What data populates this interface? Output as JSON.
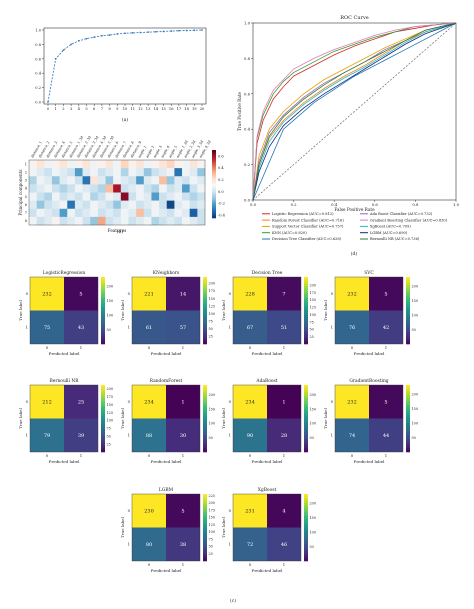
{
  "colors": {
    "viridis": [
      "#440154",
      "#482878",
      "#3e4989",
      "#31688e",
      "#26828e",
      "#1f9e89",
      "#35b779",
      "#6ece58",
      "#b5de2b",
      "#fde725"
    ],
    "rdbu": [
      "#053061",
      "#2166ac",
      "#4393c3",
      "#92c5de",
      "#d1e5f0",
      "#f7f7f7",
      "#fddbc7",
      "#f4a582",
      "#d6604d",
      "#b2182b",
      "#67001f"
    ],
    "scree_line": "#3b7dbf"
  },
  "panels": {
    "a": {
      "caption": "(a)"
    },
    "b": {
      "caption": "(b)"
    },
    "c": {
      "caption": "(c)"
    },
    "d": {
      "caption": "(d)"
    }
  },
  "chart_data": [
    {
      "id": "a",
      "type": "line",
      "title": "",
      "xlabel": "",
      "ylabel": "",
      "x": [
        0,
        1,
        2,
        3,
        4,
        5,
        6,
        7,
        8,
        9,
        10,
        11,
        12,
        13,
        14,
        15,
        16,
        17,
        18,
        19,
        20
      ],
      "values": [
        0.0,
        0.6,
        0.72,
        0.8,
        0.85,
        0.88,
        0.9,
        0.92,
        0.93,
        0.945,
        0.955,
        0.96,
        0.965,
        0.97,
        0.975,
        0.98,
        0.985,
        0.99,
        0.993,
        0.996,
        1.0
      ],
      "xticks": [
        "0",
        "1",
        "2",
        "3",
        "4",
        "5",
        "6",
        "7",
        "8",
        "9",
        "10",
        "11",
        "12",
        "13",
        "14",
        "15",
        "16",
        "17",
        "18",
        "19",
        "20"
      ],
      "yticks": [
        "0.0",
        "0.2",
        "0.4",
        "0.6",
        "0.8",
        "1.0"
      ],
      "ylim": [
        0,
        1.0
      ],
      "grid": false
    },
    {
      "id": "b",
      "type": "heatmap",
      "xlabel": "Features",
      "ylabel": "Principal components",
      "columns": [
        "distance_1",
        "distance_2",
        "distance_3",
        "distance_4",
        "distance_5",
        "distance_1_3d",
        "distance_2_3d",
        "distance_3_3d",
        "distance_4_3d",
        "distance_5_3d",
        "distance_6",
        "distance_7",
        "distance_8",
        "distance_9",
        "angle_1",
        "angle_2",
        "angle_3",
        "angle_4",
        "angle_5",
        "angle_1_3d",
        "angle_2_3d",
        "angle_3_3d",
        "angle_4_3d"
      ],
      "rows": [
        "1",
        "2",
        "3",
        "4",
        "5",
        "6",
        "7",
        "8"
      ],
      "colorbar_ticks": [
        "0.6",
        "0.4",
        "0.2",
        "0.0",
        "-0.2",
        "-0.4"
      ],
      "zlim": [
        -0.45,
        0.7
      ],
      "values": [
        [
          0.15,
          0.2,
          0.1,
          0.15,
          0.2,
          0.1,
          0.15,
          0.2,
          0.1,
          0.15,
          0.2,
          0.1,
          0.25,
          0.15,
          0.2,
          0.1,
          0.15,
          0.2,
          0.25,
          0.15,
          0.1,
          0.2,
          0.15
        ],
        [
          0.1,
          0.05,
          0.0,
          0.1,
          0.05,
          0.0,
          -0.2,
          0.05,
          0.1,
          0.0,
          0.05,
          0.1,
          -0.05,
          0.1,
          0.05,
          -0.1,
          0.0,
          0.05,
          0.1,
          -0.3,
          0.1,
          0.05,
          -0.1
        ],
        [
          -0.05,
          0.1,
          0.05,
          -0.1,
          0.05,
          0.1,
          0.0,
          -0.3,
          0.2,
          0.05,
          -0.1,
          0.1,
          0.05,
          0.0,
          -0.2,
          0.05,
          0.1,
          0.3,
          -0.1,
          0.05,
          0.0,
          0.1,
          0.05
        ],
        [
          0.0,
          0.05,
          0.1,
          0.0,
          -0.05,
          0.0,
          0.1,
          0.05,
          0.0,
          -0.05,
          0.3,
          0.6,
          0.0,
          0.05,
          0.1,
          0.0,
          -0.05,
          0.1,
          0.0,
          0.05,
          -0.2,
          0.0,
          0.1
        ],
        [
          0.1,
          0.0,
          -0.05,
          0.1,
          0.0,
          0.05,
          0.0,
          0.1,
          -0.05,
          0.0,
          0.1,
          0.05,
          0.65,
          0.0,
          0.1,
          0.05,
          -0.2,
          0.0,
          0.05,
          0.1,
          0.0,
          -0.05,
          0.0
        ],
        [
          0.05,
          -0.1,
          0.0,
          0.05,
          0.1,
          -0.3,
          0.05,
          0.0,
          0.1,
          0.05,
          0.0,
          -0.1,
          0.05,
          0.1,
          0.0,
          0.05,
          0.1,
          0.0,
          -0.4,
          0.05,
          0.1,
          0.0,
          0.05
        ],
        [
          0.0,
          0.1,
          0.05,
          0.0,
          -0.2,
          0.1,
          0.0,
          0.05,
          0.1,
          0.0,
          0.05,
          0.0,
          0.1,
          0.05,
          0.3,
          0.0,
          0.1,
          0.05,
          0.0,
          0.1,
          0.05,
          -0.35,
          0.0
        ],
        [
          0.1,
          0.0,
          0.05,
          0.15,
          0.0,
          0.05,
          0.1,
          0.0,
          -0.1,
          0.35,
          0.0,
          0.05,
          0.1,
          0.0,
          0.05,
          0.1,
          -0.05,
          0.0,
          0.05,
          0.0,
          0.1,
          0.05,
          0.0
        ]
      ]
    },
    {
      "id": "d",
      "type": "line",
      "title": "ROC Curve",
      "xlabel": "False Positive Rate",
      "ylabel": "True Positive Rate",
      "xlim": [
        0,
        1.0
      ],
      "ylim": [
        0,
        1.0
      ],
      "xticks": [
        "0.0",
        "0.2",
        "0.4",
        "0.6",
        "0.8",
        "1.0"
      ],
      "yticks": [
        "0.0",
        "0.2",
        "0.4",
        "0.6",
        "0.8",
        "1.0"
      ],
      "legend_position": "below",
      "series": [
        {
          "name": "Logistic Regression (AUC=0.812)",
          "color": "#d62728",
          "x": [
            0,
            0.02,
            0.05,
            0.1,
            0.15,
            0.2,
            0.3,
            0.4,
            0.5,
            0.6,
            0.7,
            0.8,
            0.9,
            1.0
          ],
          "y": [
            0,
            0.32,
            0.45,
            0.57,
            0.64,
            0.7,
            0.76,
            0.82,
            0.87,
            0.91,
            0.95,
            0.97,
            0.99,
            1.0
          ]
        },
        {
          "name": "Random Forest Classifier (AUC=0.716)",
          "color": "#ff7f0e",
          "x": [
            0,
            0.03,
            0.08,
            0.15,
            0.25,
            0.35,
            0.45,
            0.55,
            0.65,
            0.75,
            0.85,
            1.0
          ],
          "y": [
            0,
            0.2,
            0.35,
            0.45,
            0.55,
            0.63,
            0.7,
            0.76,
            0.83,
            0.9,
            0.95,
            1.0
          ]
        },
        {
          "name": "Support Vector Classifier (AUC=0.757)",
          "color": "#e6a000",
          "x": [
            0,
            0.03,
            0.08,
            0.15,
            0.25,
            0.35,
            0.45,
            0.55,
            0.65,
            0.75,
            0.85,
            1.0
          ],
          "y": [
            0,
            0.25,
            0.4,
            0.5,
            0.6,
            0.68,
            0.74,
            0.8,
            0.86,
            0.91,
            0.96,
            1.0
          ]
        },
        {
          "name": "KNN (AUC=0.820)",
          "color": "#2ca02c",
          "x": [
            0,
            0.02,
            0.05,
            0.1,
            0.15,
            0.2,
            0.3,
            0.4,
            0.5,
            0.6,
            0.7,
            0.8,
            0.9,
            1.0
          ],
          "y": [
            0,
            0.35,
            0.48,
            0.6,
            0.67,
            0.72,
            0.78,
            0.84,
            0.88,
            0.92,
            0.95,
            0.98,
            0.99,
            1.0
          ]
        },
        {
          "name": "Decision Tree Classifier (AUC=0.628)",
          "color": "#1f77b4",
          "x": [
            0,
            0.15,
            0.3,
            0.5,
            0.75,
            1.0
          ],
          "y": [
            0,
            0.4,
            0.55,
            0.7,
            0.85,
            1.0
          ]
        },
        {
          "name": "Ada Boost Classifier (AUC=0.732)",
          "color": "#9467bd",
          "x": [
            0,
            0.03,
            0.08,
            0.15,
            0.25,
            0.35,
            0.45,
            0.55,
            0.65,
            0.75,
            0.85,
            1.0
          ],
          "y": [
            0,
            0.22,
            0.38,
            0.48,
            0.58,
            0.66,
            0.72,
            0.78,
            0.85,
            0.9,
            0.96,
            1.0
          ]
        },
        {
          "name": "Gradient Boosting Classifier (AUC=0.830)",
          "color": "#e377c2",
          "x": [
            0,
            0.02,
            0.05,
            0.1,
            0.15,
            0.2,
            0.3,
            0.4,
            0.5,
            0.6,
            0.7,
            0.8,
            0.9,
            1.0
          ],
          "y": [
            0,
            0.36,
            0.5,
            0.62,
            0.68,
            0.74,
            0.8,
            0.85,
            0.89,
            0.93,
            0.96,
            0.98,
            0.99,
            1.0
          ]
        },
        {
          "name": "XgBoost (AUC=0.709)",
          "color": "#17becf",
          "x": [
            0,
            0.03,
            0.08,
            0.15,
            0.25,
            0.35,
            0.45,
            0.55,
            0.65,
            0.75,
            0.85,
            1.0
          ],
          "y": [
            0,
            0.18,
            0.33,
            0.44,
            0.54,
            0.62,
            0.69,
            0.75,
            0.82,
            0.89,
            0.95,
            1.0
          ]
        },
        {
          "name": "LGBM (AUC=0.690)",
          "color": "#1a237e",
          "x": [
            0,
            0.03,
            0.08,
            0.15,
            0.25,
            0.35,
            0.45,
            0.55,
            0.65,
            0.75,
            0.85,
            1.0
          ],
          "y": [
            0,
            0.16,
            0.3,
            0.42,
            0.52,
            0.6,
            0.67,
            0.74,
            0.81,
            0.88,
            0.94,
            1.0
          ]
        },
        {
          "name": "Bernoulli NB (AUC=0.736)",
          "color": "#2e7d32",
          "x": [
            0,
            0.03,
            0.08,
            0.15,
            0.25,
            0.35,
            0.45,
            0.55,
            0.65,
            0.75,
            0.85,
            1.0
          ],
          "y": [
            0,
            0.2,
            0.36,
            0.47,
            0.57,
            0.65,
            0.72,
            0.78,
            0.84,
            0.9,
            0.96,
            1.0
          ]
        }
      ]
    },
    {
      "id": "c",
      "type": "heatmap",
      "xlabel": "Predicted label",
      "ylabel": "True label",
      "tick_labels": [
        "0",
        "1"
      ],
      "matrices": [
        {
          "title": "LogisticRegression",
          "values": [
            [
              232,
              5
            ],
            [
              75,
              43
            ]
          ],
          "cbar_ticks": [
            "200",
            "150",
            "100",
            "50"
          ],
          "cmax": 232
        },
        {
          "title": "KNeighbors",
          "values": [
            [
              221,
              14
            ],
            [
              61,
              57
            ]
          ],
          "cbar_ticks": [
            "200",
            "175",
            "150",
            "125",
            "100",
            "75",
            "50",
            "25"
          ],
          "cmax": 221
        },
        {
          "title": "Decision Tree",
          "values": [
            [
              228,
              7
            ],
            [
              67,
              51
            ]
          ],
          "cbar_ticks": [
            "200",
            "175",
            "150",
            "125",
            "100",
            "75",
            "50",
            "25"
          ],
          "cmax": 228
        },
        {
          "title": "SVC",
          "values": [
            [
              232,
              5
            ],
            [
              76,
              42
            ]
          ],
          "cbar_ticks": [
            "200",
            "150",
            "100",
            "50"
          ],
          "cmax": 232
        },
        {
          "title": "Bernoulli NB",
          "values": [
            [
              212,
              25
            ],
            [
              79,
              39
            ]
          ],
          "cbar_ticks": [
            "200",
            "175",
            "150",
            "125",
            "100",
            "75",
            "50",
            "25"
          ],
          "cmax": 212
        },
        {
          "title": "RandomForest",
          "values": [
            [
              234,
              1
            ],
            [
              88,
              30
            ]
          ],
          "cbar_ticks": [
            "200",
            "150",
            "100",
            "50"
          ],
          "cmax": 234
        },
        {
          "title": "AdaBoost",
          "values": [
            [
              234,
              1
            ],
            [
              90,
              28
            ]
          ],
          "cbar_ticks": [
            "200",
            "150",
            "100",
            "50"
          ],
          "cmax": 234
        },
        {
          "title": "GradientBoosting",
          "values": [
            [
              232,
              5
            ],
            [
              74,
              44
            ]
          ],
          "cbar_ticks": [
            "200",
            "150",
            "100",
            "50"
          ],
          "cmax": 232
        },
        {
          "title": "LGBM",
          "values": [
            [
              230,
              5
            ],
            [
              80,
              38
            ]
          ],
          "cbar_ticks": [
            "225",
            "200",
            "175",
            "150",
            "125",
            "100",
            "75",
            "50",
            "25"
          ],
          "cmax": 230
        },
        {
          "title": "XgBoost",
          "values": [
            [
              231,
              4
            ],
            [
              72,
              46
            ]
          ],
          "cbar_ticks": [
            "200",
            "150",
            "100",
            "50"
          ],
          "cmax": 231
        }
      ]
    }
  ]
}
